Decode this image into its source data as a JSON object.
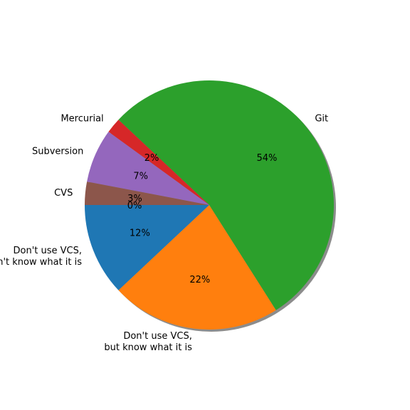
{
  "chart_data": {
    "type": "pie",
    "title": "",
    "start_angle_deg": 180,
    "direction": "counterclockwise",
    "shadow": true,
    "slices": [
      {
        "label_lines": [
          "Don't use VCS,",
          "don't know what it is"
        ],
        "value": 12,
        "pct_label": "12%",
        "color": "#1f77b4"
      },
      {
        "label_lines": [
          "Don't use VCS,",
          "but know what it is"
        ],
        "value": 22,
        "pct_label": "22%",
        "color": "#ff7f0e"
      },
      {
        "label_lines": [
          "Git"
        ],
        "value": 54,
        "pct_label": "54%",
        "color": "#2ca02c"
      },
      {
        "label_lines": [
          "Mercurial"
        ],
        "value": 2,
        "pct_label": "2%",
        "color": "#d62728"
      },
      {
        "label_lines": [
          "Subversion"
        ],
        "value": 7,
        "pct_label": "7%",
        "color": "#9467bd"
      },
      {
        "label_lines": [
          "CVS"
        ],
        "value": 3,
        "pct_label": "3%",
        "color": "#8c564b"
      },
      {
        "label_lines": [
          ""
        ],
        "value": 0,
        "pct_label": "0%",
        "color": "#e377c2"
      }
    ]
  }
}
